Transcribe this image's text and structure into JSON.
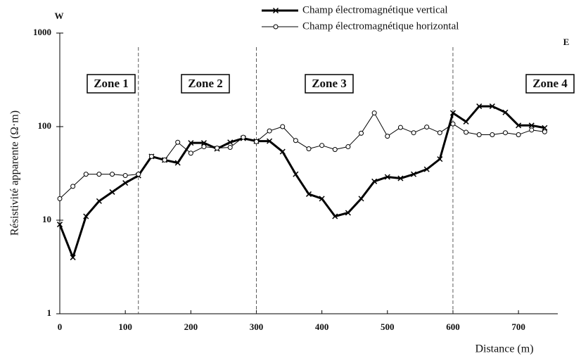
{
  "chart_data": {
    "type": "line",
    "ylabel": "Résistivité apparente (Ω·m)",
    "xlabel": "Distance (m)",
    "west_label": "W",
    "east_label": "E",
    "x": [
      0,
      20,
      40,
      60,
      80,
      100,
      120,
      140,
      160,
      180,
      200,
      220,
      240,
      260,
      280,
      300,
      320,
      340,
      360,
      380,
      400,
      420,
      440,
      460,
      480,
      500,
      520,
      540,
      560,
      580,
      600,
      620,
      640,
      660,
      680,
      700,
      720,
      740
    ],
    "series": [
      {
        "name": "Champ électromagnétique vertical",
        "color": "#000000",
        "marker": "x",
        "line_width": 3,
        "values": [
          9,
          4,
          11,
          16,
          20,
          25,
          30,
          48,
          44,
          41,
          67,
          67,
          58,
          68,
          75,
          70,
          70,
          54,
          31,
          19,
          17,
          11,
          12,
          17,
          26,
          29,
          28,
          31,
          35,
          45,
          140,
          113,
          165,
          165,
          142,
          103,
          103,
          97
        ]
      },
      {
        "name": "Champ électromagnétique horizontal",
        "color": "#000000",
        "marker": "o",
        "line_width": 1,
        "values": [
          17,
          23,
          31,
          31,
          31,
          30,
          31,
          48,
          44,
          68,
          52,
          61,
          59,
          60,
          77,
          69,
          90,
          100,
          71,
          58,
          63,
          57,
          61,
          85,
          140,
          79,
          98,
          86,
          99,
          86,
          107,
          87,
          82,
          82,
          86,
          82,
          92,
          88
        ]
      }
    ],
    "zone_boundaries": [
      120,
      300,
      600
    ],
    "zones": [
      "Zone 1",
      "Zone 2",
      "Zone 3",
      "Zone 4"
    ],
    "xlim": [
      0,
      760
    ],
    "xticks": [
      0,
      100,
      200,
      300,
      400,
      500,
      600,
      700
    ],
    "ylim": [
      1,
      1000
    ],
    "yticks": [
      1,
      10,
      100,
      1000
    ],
    "log_y": true,
    "grid": false
  }
}
